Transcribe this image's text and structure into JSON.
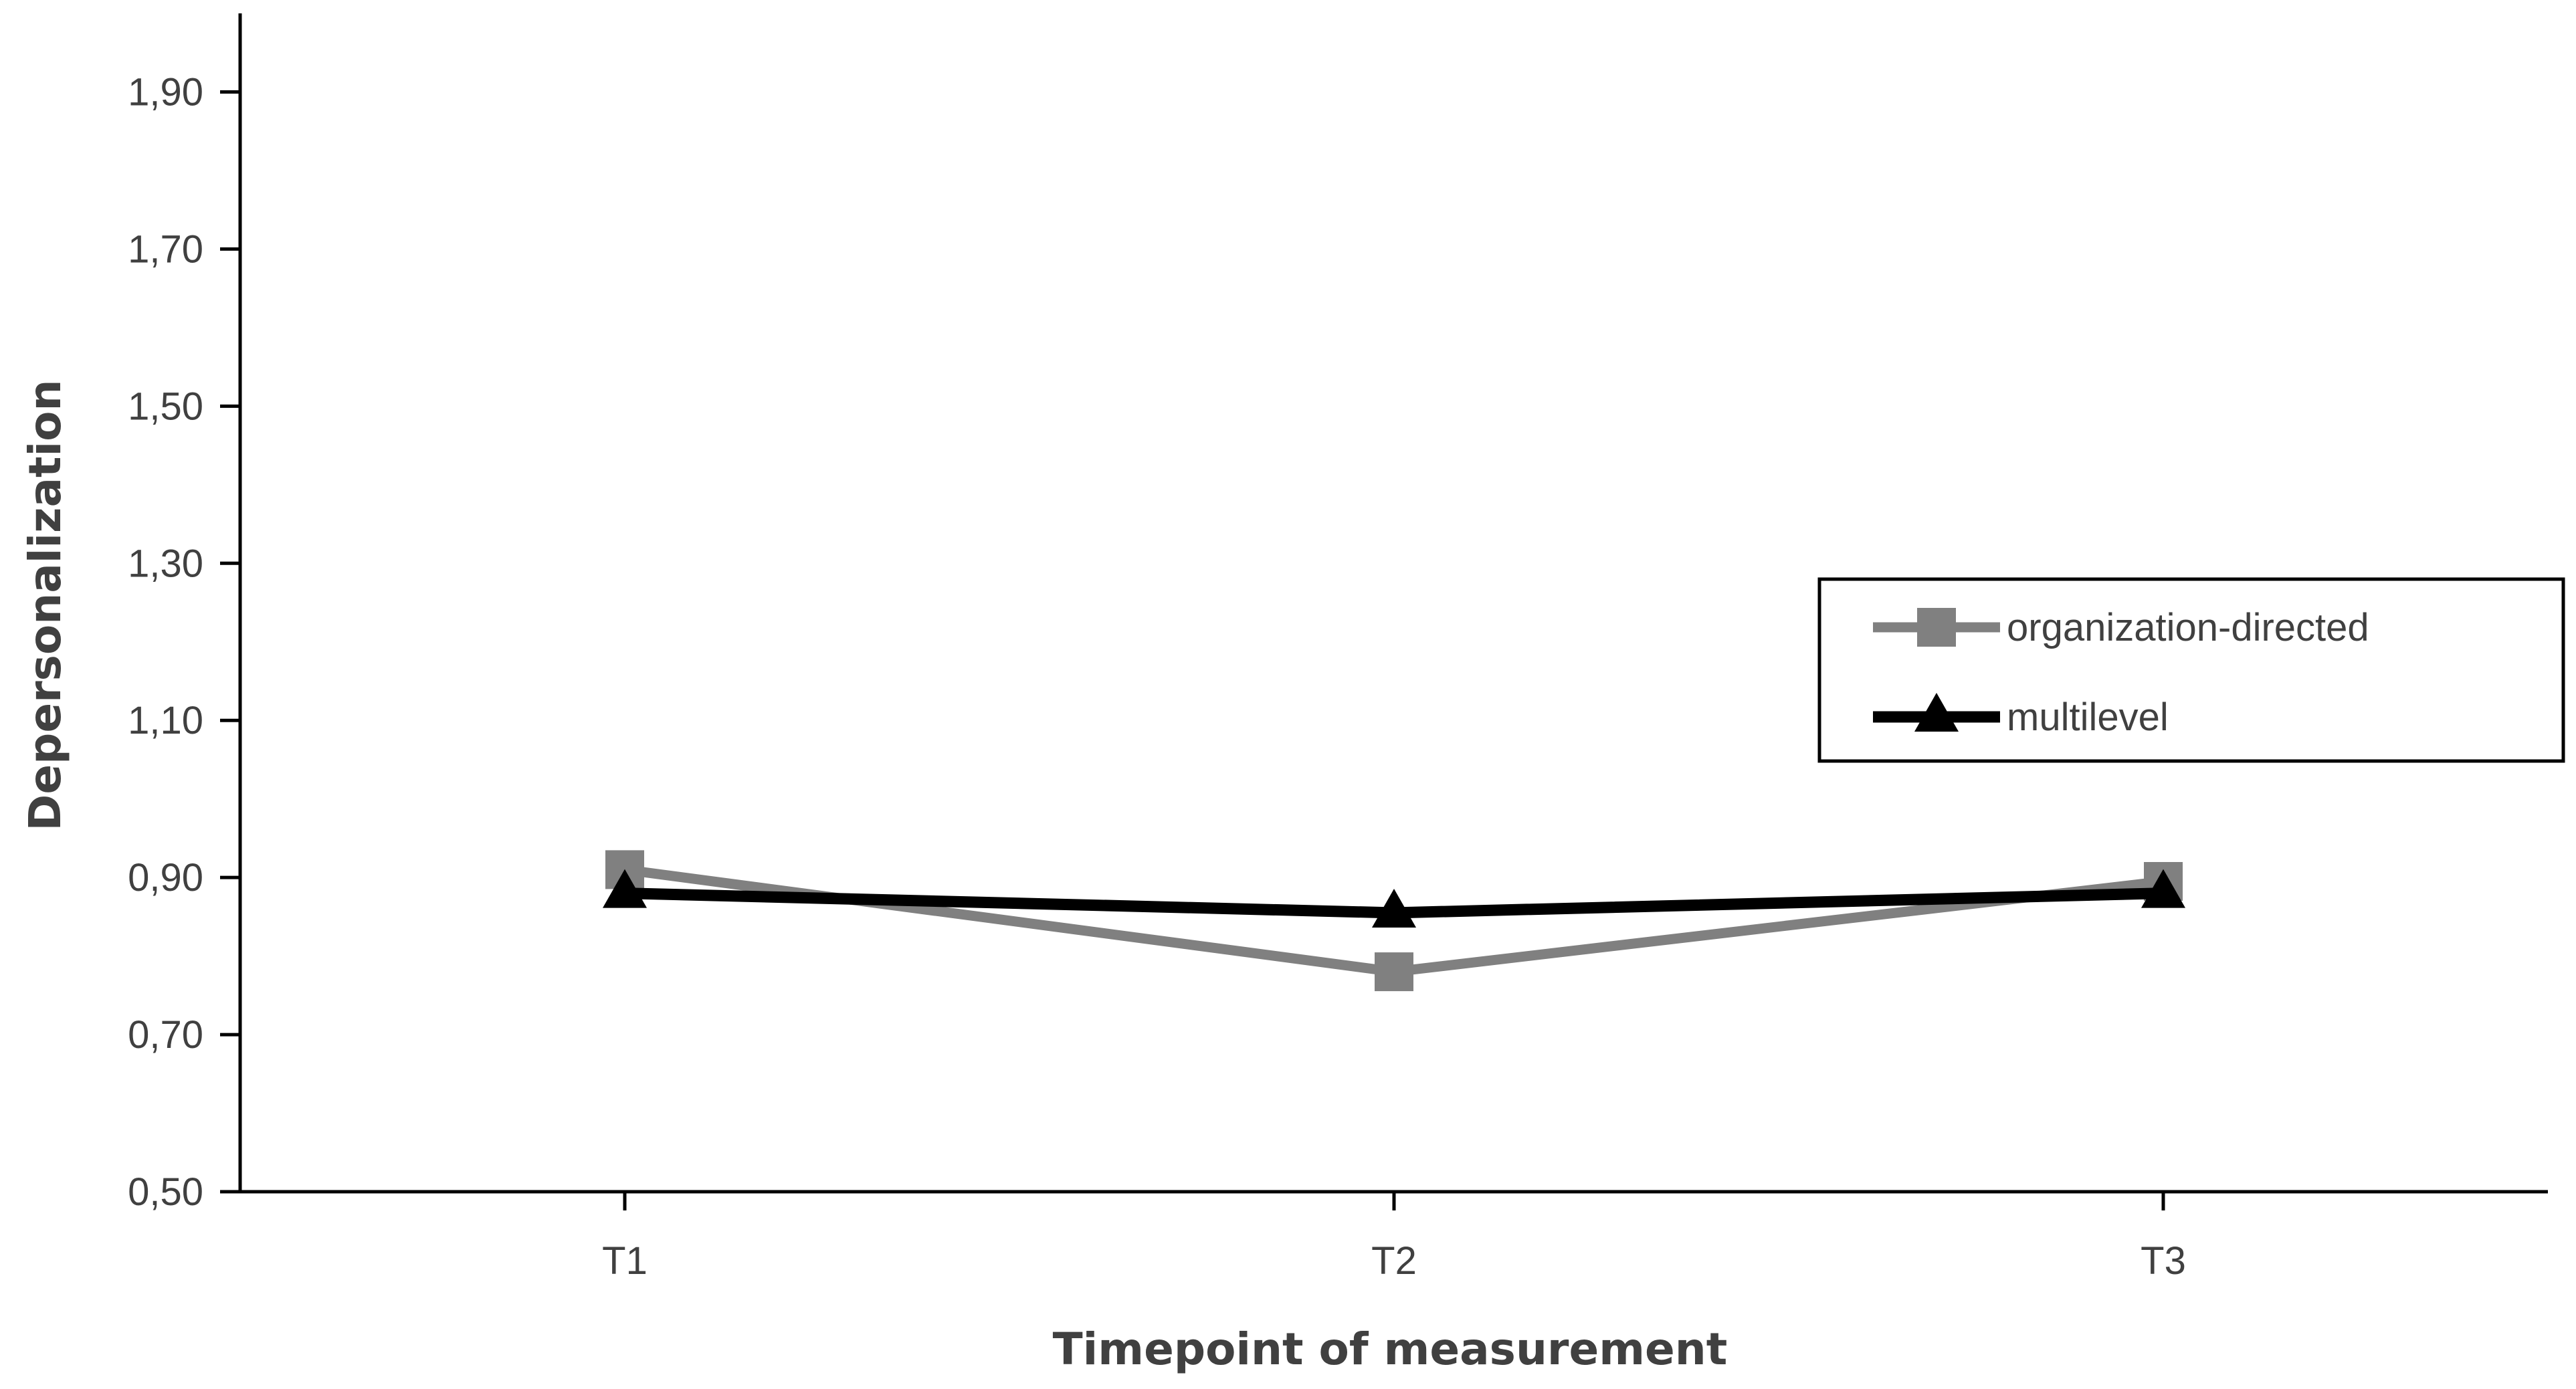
{
  "chart_data": {
    "type": "line",
    "title": "",
    "xlabel": "Timepoint of measurement",
    "ylabel": "Depersonalization",
    "categories": [
      "T1",
      "T2",
      "T3"
    ],
    "ylim": [
      0.5,
      2.0
    ],
    "yticks": [
      {
        "value": 0.5,
        "label": "0,50"
      },
      {
        "value": 0.7,
        "label": "0,70"
      },
      {
        "value": 0.9,
        "label": "0,90"
      },
      {
        "value": 1.1,
        "label": "1,10"
      },
      {
        "value": 1.3,
        "label": "1,30"
      },
      {
        "value": 1.5,
        "label": "1,50"
      },
      {
        "value": 1.7,
        "label": "1,70"
      },
      {
        "value": 1.9,
        "label": "1,90"
      }
    ],
    "series": [
      {
        "name": "organization-directed",
        "values": [
          0.91,
          0.78,
          0.895
        ],
        "color": "#808080",
        "marker": "square"
      },
      {
        "name": "multilevel",
        "values": [
          0.88,
          0.855,
          0.88
        ],
        "color": "#000000",
        "marker": "triangle"
      }
    ],
    "grid": false,
    "legend_position": "right"
  }
}
